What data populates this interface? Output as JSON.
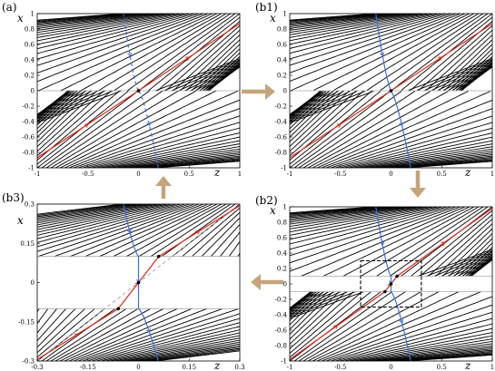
{
  "panels": [
    {
      "key": "a",
      "label": "(a)",
      "xname": "z",
      "yname": "x",
      "xlim": [
        -1,
        1
      ],
      "ylim": [
        -1,
        1
      ],
      "xticks": [
        "-1",
        "-0.5",
        "0",
        "0.5",
        "1"
      ],
      "yticks": [
        "1",
        "0.8",
        "0.6",
        "0.4",
        "0.2",
        "0",
        "-0.2",
        "-0.4",
        "-0.6",
        "-0.8",
        "-1"
      ],
      "gap": 0,
      "dashed_line": true,
      "blue_style": "dashed"
    },
    {
      "key": "b1",
      "label": "(b1)",
      "xname": "z",
      "yname": "x",
      "xlim": [
        -1,
        1
      ],
      "ylim": [
        -1,
        1
      ],
      "xticks": [
        "-1",
        "-0.5",
        "0",
        "0.5",
        "1"
      ],
      "yticks": [
        "1",
        "0.8",
        "0.6",
        "0.4",
        "0.2",
        "0",
        "-0.2",
        "-0.4",
        "-0.6",
        "-0.8",
        "-1"
      ],
      "gap": 0.006,
      "dashed_line": false,
      "blue_style": "solid"
    },
    {
      "key": "b2",
      "label": "(b2)",
      "xname": "z",
      "yname": "x",
      "xlim": [
        -1,
        1
      ],
      "ylim": [
        -1,
        1
      ],
      "xticks": [
        "-1",
        "-0.5",
        "0",
        "0.5",
        "1"
      ],
      "yticks": [
        "1",
        "0.8",
        "0.6",
        "0.4",
        "0.2",
        "0",
        "-0.2",
        "-0.4",
        "-0.6",
        "-0.8",
        "-1"
      ],
      "gap": 0.1,
      "dashed_line": false,
      "blue_style": "solid",
      "inset_box": true
    },
    {
      "key": "b3",
      "label": "(b3)",
      "xname": "z",
      "yname": "x",
      "xlim": [
        -0.3,
        0.3
      ],
      "ylim": [
        -0.3,
        0.3
      ],
      "xticks": [
        "-0.3",
        "-0.15",
        "0",
        "0.15",
        "0.3"
      ],
      "yticks": [
        "0.3",
        "0.15",
        "0",
        "-0.15",
        "-0.3"
      ],
      "gap": 0.1,
      "dashed_line": true,
      "blue_style": "solid"
    }
  ],
  "colors": {
    "trajectory": "#000000",
    "invariant_line": "#e0301e",
    "stable_manifold": "#3b6fe0",
    "arrow": "#c4a57a",
    "gap_line": "#aaaaaa"
  },
  "transition_arrows": [
    "a-to-b1",
    "b1-to-b2",
    "b2-to-b3",
    "b3-to-a"
  ]
}
